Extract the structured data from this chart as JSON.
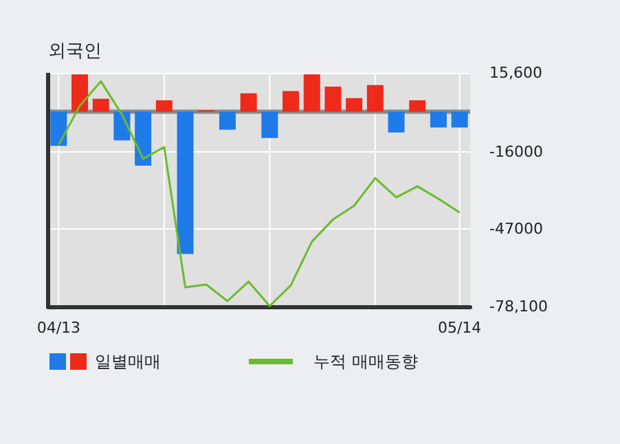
{
  "chart_data": {
    "type": "bar",
    "title": "외국인",
    "categories": [
      "04/13",
      null,
      null,
      null,
      null,
      null,
      null,
      null,
      null,
      null,
      null,
      null,
      null,
      null,
      null,
      null,
      null,
      null,
      null,
      "05/14"
    ],
    "series": [
      {
        "name": "일별매매",
        "colors": [
          "#1e7be8",
          "#ee2a1a",
          "#ee2a1a",
          "#1e7be8",
          "#1e7be8",
          "#ee2a1a",
          "#1e7be8",
          "#ee2a1a",
          "#1e7be8",
          "#ee2a1a",
          "#1e7be8",
          "#ee2a1a",
          "#ee2a1a",
          "#ee2a1a",
          "#ee2a1a",
          "#ee2a1a",
          "#1e7be8",
          "#ee2a1a",
          "#1e7be8",
          "#1e7be8"
        ],
        "values": [
          -13700,
          15000,
          5200,
          -11500,
          -21600,
          4600,
          -57000,
          600,
          -7200,
          7400,
          -10500,
          8300,
          15000,
          10100,
          5500,
          10700,
          -8300,
          4600,
          -6300,
          -6300
        ]
      },
      {
        "type": "line",
        "name": "누적 매매동향",
        "color": "#6cbb2a",
        "values": [
          -13300,
          2400,
          12200,
          -1100,
          -18800,
          -14200,
          -70400,
          -69300,
          -75900,
          -68100,
          -77900,
          -69600,
          -52100,
          -43200,
          -37700,
          -26600,
          -34300,
          -29900,
          -34900,
          -40400
        ]
      }
    ],
    "ylim": [
      -78100,
      15600
    ],
    "yticks": [
      {
        "value": 15600,
        "label": "15,600"
      },
      {
        "value": -16000,
        "label": "-16000"
      },
      {
        "value": -47000,
        "label": "-47000"
      },
      {
        "value": -78100,
        "label": "-78,100"
      }
    ],
    "grid": true,
    "legend": "bottom",
    "marker": "none",
    "line_style": "solid"
  }
}
